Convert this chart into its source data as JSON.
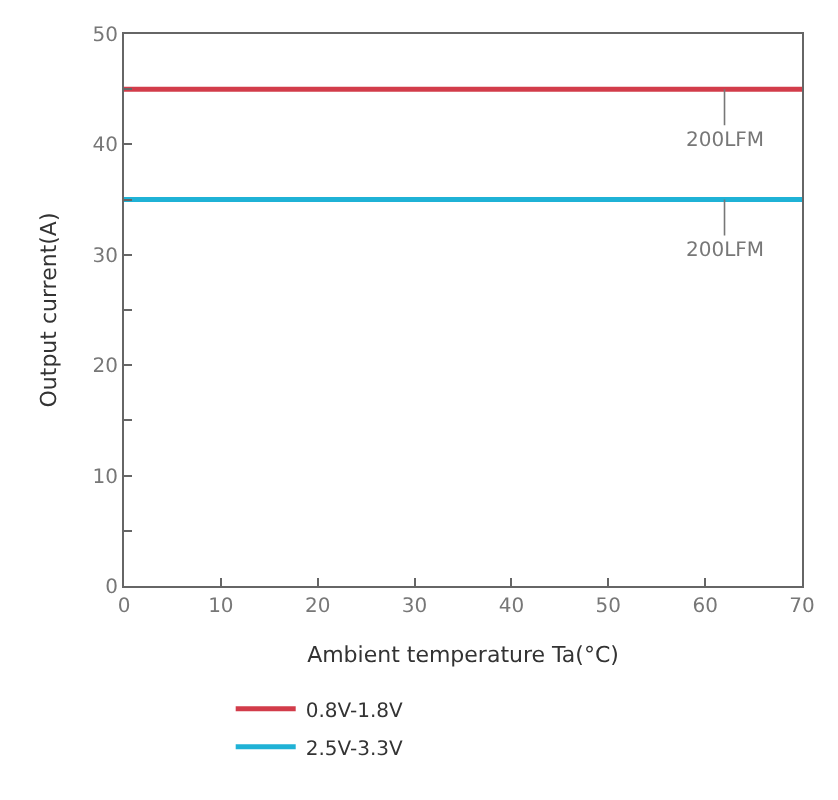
{
  "chart_data": {
    "type": "line",
    "xlabel": "Ambient temperature Ta(°C)",
    "ylabel": "Output current(A)",
    "x": [
      0,
      70
    ],
    "series": [
      {
        "name": "0.8V-1.8V",
        "color": "#d23c4a",
        "values": [
          45,
          45
        ]
      },
      {
        "name": "2.5V-3.3V",
        "color": "#1fb2d6",
        "values": [
          35,
          35
        ]
      }
    ],
    "annotations": [
      {
        "text": "200LFM",
        "x": 62,
        "y": 45
      },
      {
        "text": "200LFM",
        "x": 62,
        "y": 35
      }
    ],
    "xlim": [
      0,
      70
    ],
    "ylim": [
      0,
      50
    ],
    "xticks": [
      0,
      10,
      20,
      30,
      40,
      50,
      60,
      70
    ],
    "yticks": [
      0,
      {
        "value": 5,
        "label": null
      },
      10,
      {
        "value": 15,
        "label": null
      },
      20,
      {
        "value": 25,
        "label": null
      },
      30,
      {
        "value": 35,
        "label": null
      },
      40,
      {
        "value": 45,
        "label": null
      },
      50
    ],
    "grid": false,
    "legend": "bottom",
    "marker": "none",
    "line_style": "solid"
  }
}
